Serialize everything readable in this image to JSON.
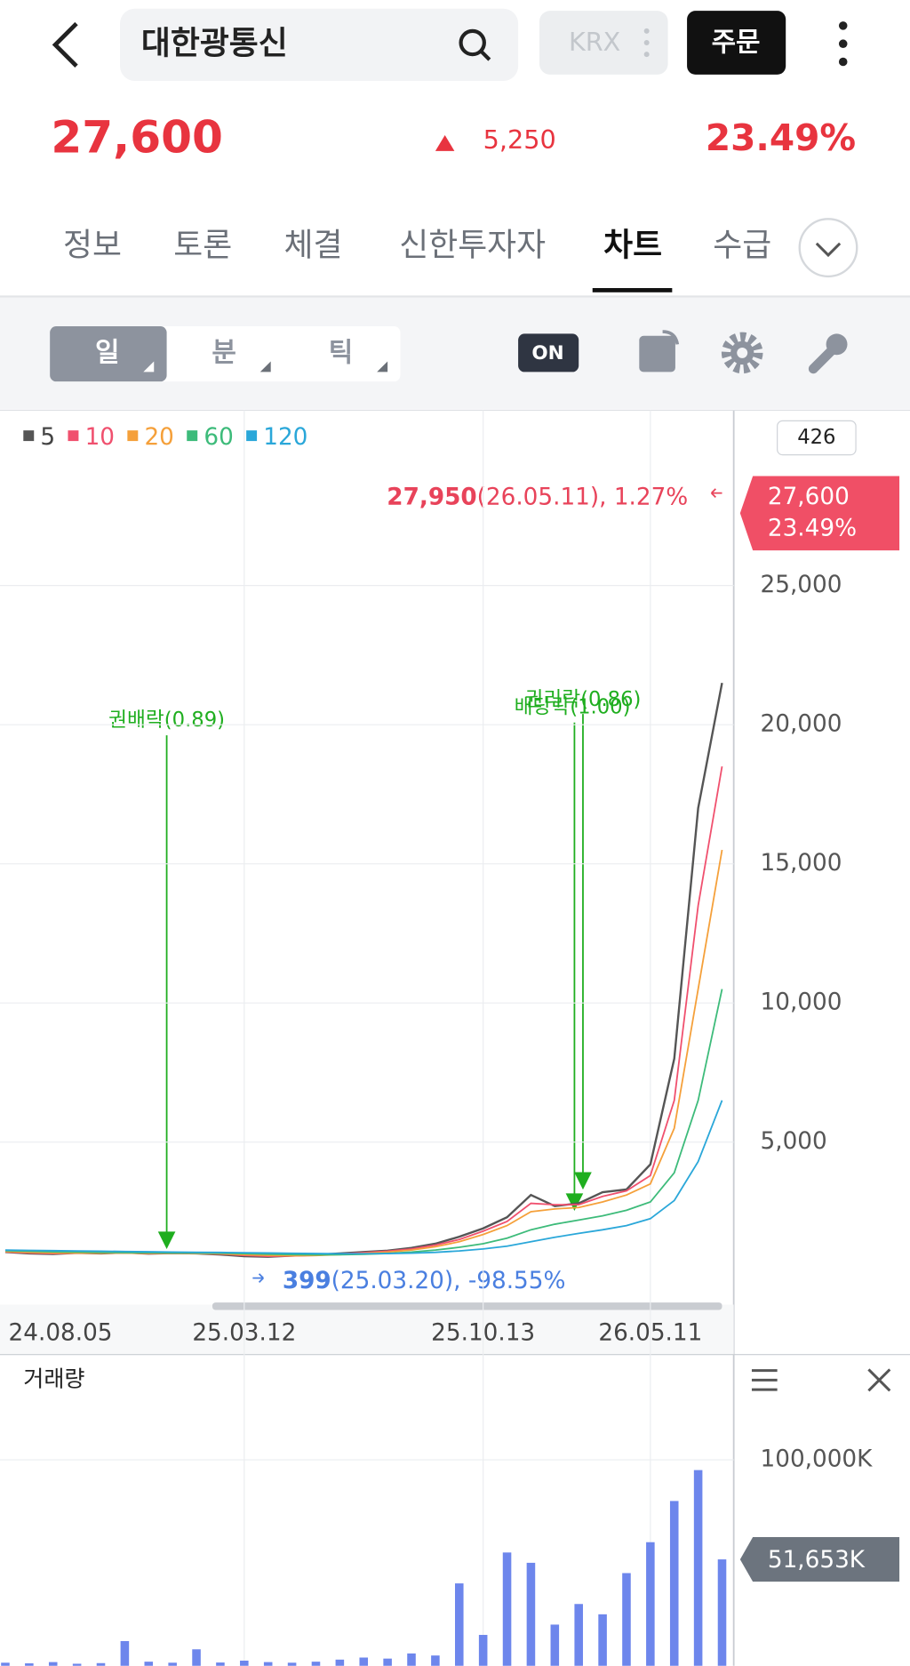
{
  "header": {
    "search": "대한광통신",
    "exchange": "KRX",
    "order": "주문"
  },
  "quote": {
    "price": "27,600",
    "change": "5,250",
    "rate": "23.49%"
  },
  "tabs": [
    "정보",
    "토론",
    "체결",
    "신한투자자",
    "차트",
    "수급"
  ],
  "periods": [
    "일",
    "분",
    "틱"
  ],
  "toggle": "ON",
  "chart_data": [
    {
      "type": "line",
      "categories": [
        "24.08.05",
        null,
        null,
        null,
        null,
        null,
        null,
        null,
        null,
        null,
        "25.03.12",
        null,
        null,
        null,
        null,
        null,
        null,
        null,
        null,
        null,
        "25.10.13",
        null,
        null,
        null,
        null,
        null,
        null,
        "26.05.11",
        null,
        null,
        null
      ],
      "series": [
        {
          "name": "5",
          "color": "#555555",
          "values": [
            1050,
            1000,
            980,
            1020,
            1000,
            1030,
            990,
            1010,
            1000,
            960,
            900,
            880,
            920,
            950,
            1000,
            1050,
            1100,
            1200,
            1350,
            1600,
            1900,
            2300,
            3100,
            2700,
            2800,
            3200,
            3300,
            4200,
            8000,
            17000,
            21500
          ]
        },
        {
          "name": "10",
          "color": "#f0506e",
          "values": [
            1060,
            1020,
            1000,
            1010,
            1005,
            1020,
            1000,
            1005,
            1000,
            980,
            930,
            900,
            910,
            930,
            980,
            1030,
            1080,
            1160,
            1300,
            1500,
            1800,
            2150,
            2800,
            2750,
            2750,
            3050,
            3250,
            3800,
            6500,
            13500,
            18500
          ]
        },
        {
          "name": "20",
          "color": "#f5a03a",
          "values": [
            1070,
            1040,
            1020,
            1015,
            1010,
            1015,
            1005,
            1005,
            1000,
            990,
            960,
            930,
            920,
            925,
            960,
            1000,
            1050,
            1120,
            1240,
            1420,
            1680,
            2000,
            2500,
            2600,
            2650,
            2850,
            3100,
            3500,
            5500,
            10500,
            15500
          ]
        },
        {
          "name": "60",
          "color": "#3dbb7a",
          "values": [
            1100,
            1080,
            1060,
            1050,
            1040,
            1030,
            1025,
            1020,
            1015,
            1010,
            995,
            975,
            960,
            950,
            955,
            970,
            1000,
            1050,
            1120,
            1220,
            1350,
            1550,
            1850,
            2050,
            2200,
            2350,
            2550,
            2850,
            3900,
            6500,
            10500
          ]
        },
        {
          "name": "120",
          "color": "#2aa7d9",
          "values": [
            1120,
            1110,
            1100,
            1090,
            1080,
            1070,
            1060,
            1050,
            1040,
            1035,
            1025,
            1015,
            1005,
            995,
            990,
            990,
            995,
            1010,
            1040,
            1090,
            1160,
            1260,
            1420,
            1580,
            1720,
            1850,
            2000,
            2250,
            2900,
            4300,
            6500
          ]
        }
      ],
      "ylim": [
        -840,
        31300
      ],
      "yticks": [
        {
          "value": 5000,
          "label": "5,000"
        },
        {
          "value": 10000,
          "label": "10,000"
        },
        {
          "value": 15000,
          "label": "15,000"
        },
        {
          "value": 20000,
          "label": "20,000"
        },
        {
          "value": 25000,
          "label": "25,000"
        }
      ],
      "grid": true,
      "count": "426",
      "current": {
        "value": 27600,
        "label": "27,600",
        "rate": "23.49%"
      },
      "high": {
        "value": "27,950",
        "note": "(26.05.11), 1.27%"
      },
      "low": {
        "value": "399",
        "note": "(25.03.20), -98.55%"
      },
      "events": [
        "권배락(0.89)",
        "배당락(1.00)",
        "권리락(0.86)"
      ]
    },
    {
      "type": "bar",
      "title": "거래량",
      "values": [
        1500,
        1200,
        1800,
        1000,
        1300,
        12000,
        2000,
        1500,
        8000,
        1600,
        2500,
        1800,
        1500,
        2000,
        3000,
        4000,
        3500,
        6000,
        5000,
        40000,
        15000,
        55000,
        50000,
        20000,
        30000,
        25000,
        45000,
        60000,
        80000,
        95000,
        51653
      ],
      "color": "#6d86ec",
      "ylim": [
        0,
        148500
      ],
      "yticks": [
        {
          "value": 100000,
          "label": "100,000K"
        }
      ],
      "current": {
        "value": 51653,
        "label": "51,653K"
      }
    }
  ]
}
